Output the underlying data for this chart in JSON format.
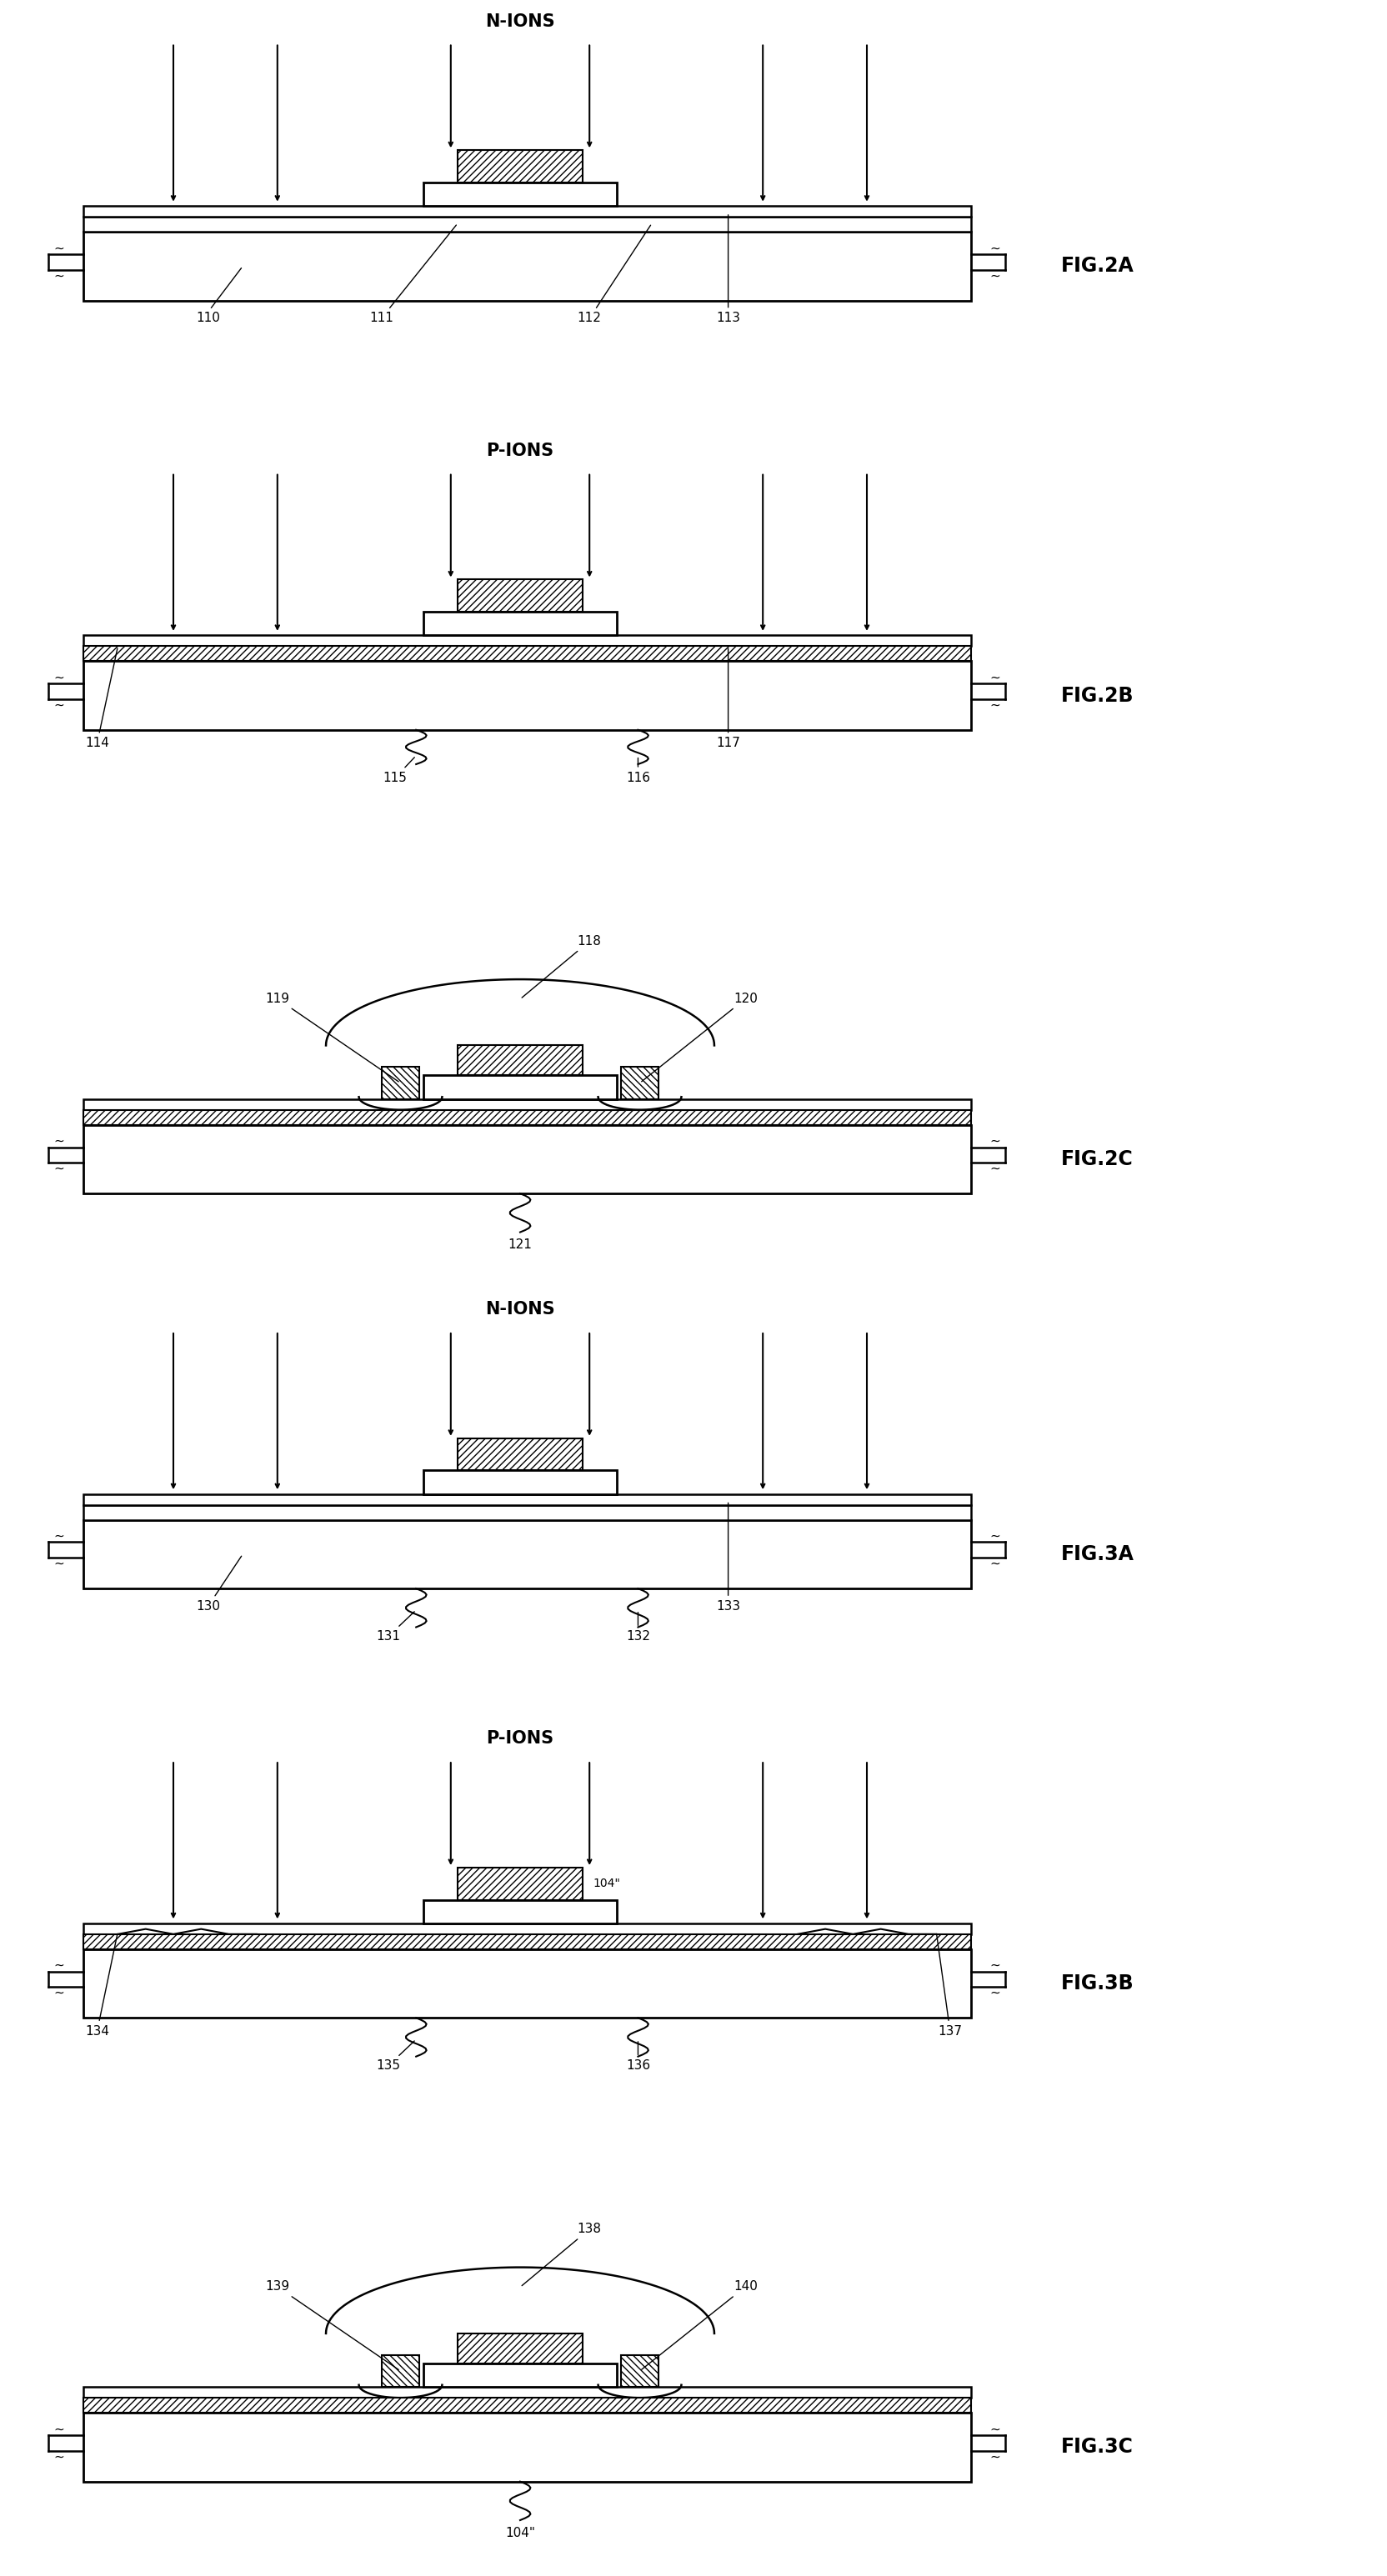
{
  "bg_color": "#ffffff",
  "panels": [
    {
      "label": "FIG.2A",
      "ions": "N-IONS",
      "type": "implant_plain",
      "ref_labels": [
        {
          "text": "110",
          "side": "inside_left"
        },
        {
          "text": "111",
          "side": "crack_left"
        },
        {
          "text": "112",
          "side": "crack_right"
        },
        {
          "text": "113",
          "side": "inside_right"
        }
      ]
    },
    {
      "label": "FIG.2B",
      "ions": "P-IONS",
      "type": "implant_hatch",
      "ref_labels": [
        {
          "text": "114",
          "side": "far_left"
        },
        {
          "text": "115",
          "side": "crack_left"
        },
        {
          "text": "116",
          "side": "crack_right"
        },
        {
          "text": "117",
          "side": "inside_right"
        }
      ]
    },
    {
      "label": "FIG.2C",
      "ions": "",
      "type": "final",
      "ref_labels": [
        {
          "text": "119",
          "pos": "left_contact"
        },
        {
          "text": "118",
          "pos": "dome"
        },
        {
          "text": "120",
          "pos": "right_contact"
        },
        {
          "text": "121",
          "pos": "below_crack"
        }
      ]
    },
    {
      "label": "FIG.3A",
      "ions": "N-IONS",
      "type": "implant_plain",
      "ref_labels": [
        {
          "text": "130",
          "side": "inside_left"
        },
        {
          "text": "131",
          "side": "crack_left"
        },
        {
          "text": "132",
          "side": "crack_right"
        },
        {
          "text": "133",
          "side": "inside_right"
        }
      ]
    },
    {
      "label": "FIG.3B",
      "ions": "P-IONS",
      "type": "implant_hatch_104",
      "ref_labels": [
        {
          "text": "134",
          "side": "far_left"
        },
        {
          "text": "135",
          "side": "crack_left"
        },
        {
          "text": "136",
          "side": "crack_right"
        },
        {
          "text": "137",
          "side": "far_right"
        },
        {
          "text": "104\"",
          "pos": "gate_label"
        }
      ]
    },
    {
      "label": "FIG.3C",
      "ions": "",
      "type": "final_104",
      "ref_labels": [
        {
          "text": "139",
          "pos": "left_contact"
        },
        {
          "text": "138",
          "pos": "dome"
        },
        {
          "text": "140",
          "pos": "right_contact"
        },
        {
          "text": "104\"",
          "pos": "below_crack"
        }
      ]
    }
  ]
}
